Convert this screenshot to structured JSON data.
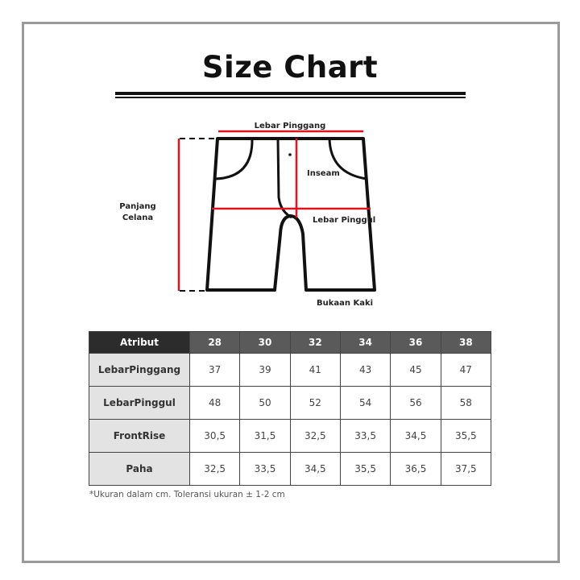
{
  "title": "Size Chart",
  "diagram": {
    "labels": {
      "waist": "Lebar Pinggang",
      "inseam": "Inseam",
      "hip": "Lebar Pinggul",
      "length_line1": "Panjang",
      "length_line2": "Celana",
      "leg_opening": "Bukaan Kaki"
    },
    "colors": {
      "measure": "#e0141e",
      "outline": "#111111"
    }
  },
  "table": {
    "header": [
      "Atribut",
      "28",
      "30",
      "32",
      "34",
      "36",
      "38"
    ],
    "rows": [
      {
        "label": "LebarPinggang",
        "values": [
          "37",
          "39",
          "41",
          "43",
          "45",
          "47"
        ]
      },
      {
        "label": "LebarPinggul",
        "values": [
          "48",
          "50",
          "52",
          "54",
          "56",
          "58"
        ]
      },
      {
        "label": "FrontRise",
        "values": [
          "30,5",
          "31,5",
          "32,5",
          "33,5",
          "34,5",
          "35,5"
        ]
      },
      {
        "label": "Paha",
        "values": [
          "32,5",
          "33,5",
          "34,5",
          "35,5",
          "36,5",
          "37,5"
        ]
      }
    ]
  },
  "note": "*Ukuran dalam cm. Toleransi ukuran ± 1-2 cm"
}
